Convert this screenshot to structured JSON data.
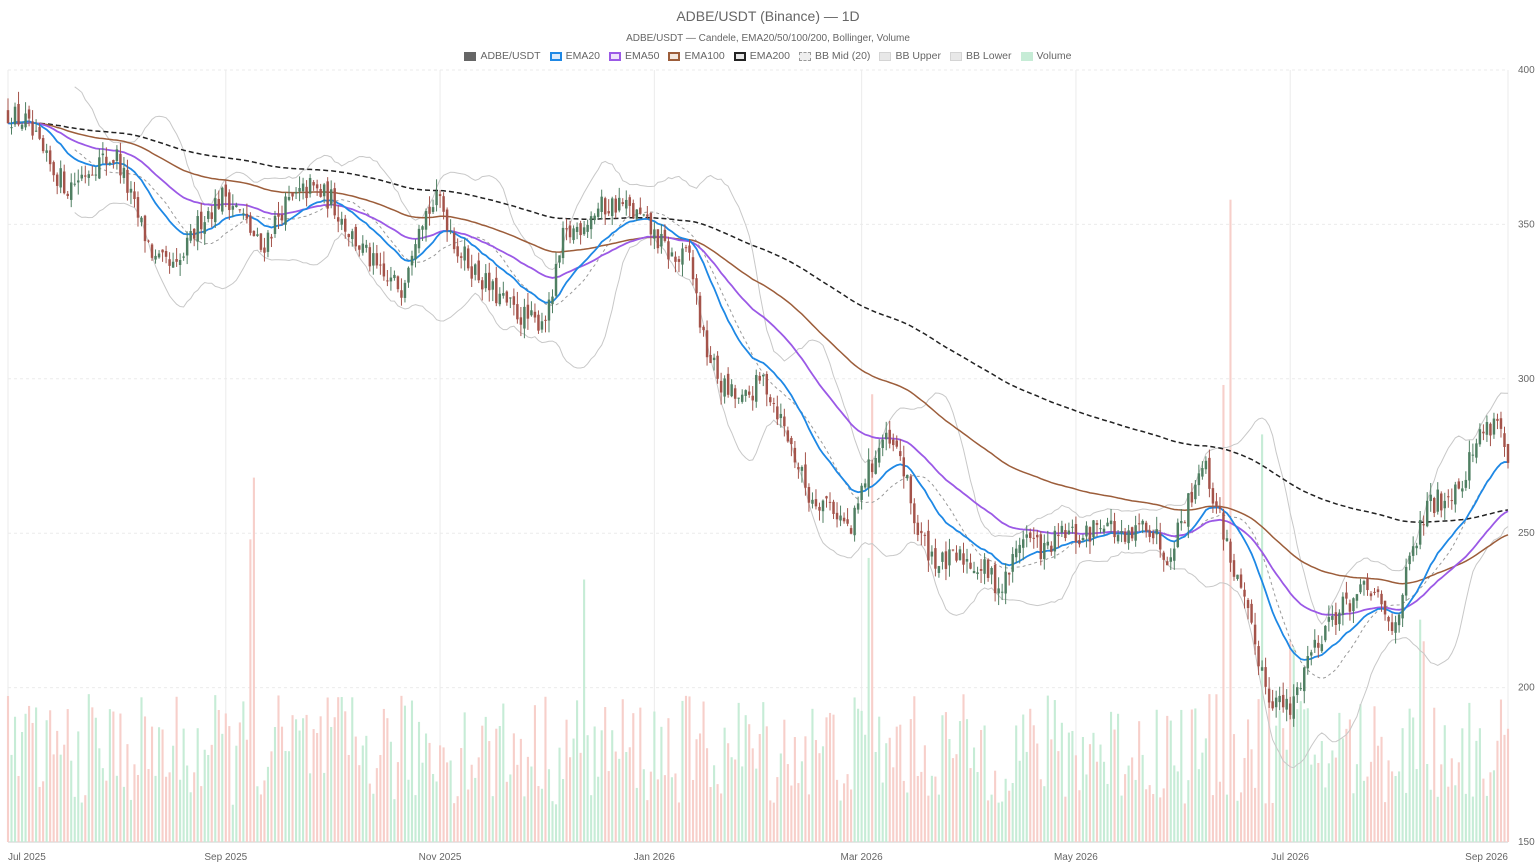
{
  "chart_data": {
    "type": "candlestick",
    "title": "ADBE/USDT (Binance) — 1D",
    "subtitle": "ADBE/USDT — Candele, EMA20/50/100/200, Bollinger, Volume",
    "legend_position": "top-center",
    "grid": true,
    "y_axis_position": "right",
    "ylim": [
      150,
      400
    ],
    "yticks": [
      150,
      200,
      250,
      300,
      350,
      400
    ],
    "xlim": [
      "2025-07-01",
      "2026-09-01"
    ],
    "xticks": [
      {
        "date": "2025-07-01",
        "label": "Jul 2025"
      },
      {
        "date": "2025-09-01",
        "label": "Sep 2025"
      },
      {
        "date": "2025-11-01",
        "label": "Nov 2025"
      },
      {
        "date": "2026-01-01",
        "label": "Jan 2026"
      },
      {
        "date": "2026-03-01",
        "label": "Mar 2026"
      },
      {
        "date": "2026-05-01",
        "label": "May 2026"
      },
      {
        "date": "2026-07-01",
        "label": "Jul 2026"
      },
      {
        "date": "2026-09-01",
        "label": "Sep 2026"
      }
    ],
    "colors": {
      "up": "#4f7f62",
      "down": "#a4534a",
      "ema20": "#1e88e5",
      "ema50": "#9b59e6",
      "ema100": "#9c5d3a",
      "ema200": "#222222",
      "bb_mid": "#9a9a9a",
      "bb_band": "#c8c8c8",
      "volume_up": "#c6ecd6",
      "volume_down": "#f7cfca",
      "grid": "#ebebeb"
    },
    "legend": [
      {
        "name": "ADBE/USDT",
        "style": "candle"
      },
      {
        "name": "EMA20",
        "style": "ema20"
      },
      {
        "name": "EMA50",
        "style": "ema50"
      },
      {
        "name": "EMA100",
        "style": "ema100"
      },
      {
        "name": "EMA200",
        "style": "ema200"
      },
      {
        "name": "BB Mid (20)",
        "style": "bbmid"
      },
      {
        "name": "BB Upper",
        "style": "bbband"
      },
      {
        "name": "BB Lower",
        "style": "bbband"
      },
      {
        "name": "Volume",
        "style": "volume"
      }
    ],
    "close_anchors": [
      [
        "2025-07-01",
        386
      ],
      [
        "2025-07-06",
        383
      ],
      [
        "2025-07-12",
        370
      ],
      [
        "2025-07-18",
        362
      ],
      [
        "2025-07-26",
        370
      ],
      [
        "2025-08-01",
        372
      ],
      [
        "2025-08-06",
        355
      ],
      [
        "2025-08-12",
        338
      ],
      [
        "2025-08-18",
        335
      ],
      [
        "2025-08-25",
        352
      ],
      [
        "2025-09-01",
        360
      ],
      [
        "2025-09-06",
        352
      ],
      [
        "2025-09-11",
        342
      ],
      [
        "2025-09-17",
        355
      ],
      [
        "2025-09-25",
        362
      ],
      [
        "2025-10-01",
        358
      ],
      [
        "2025-10-06",
        348
      ],
      [
        "2025-10-11",
        340
      ],
      [
        "2025-10-16",
        332
      ],
      [
        "2025-10-21",
        330
      ],
      [
        "2025-10-26",
        352
      ],
      [
        "2025-11-01",
        358
      ],
      [
        "2025-11-06",
        342
      ],
      [
        "2025-11-11",
        335
      ],
      [
        "2025-11-16",
        328
      ],
      [
        "2025-11-22",
        322
      ],
      [
        "2025-11-28",
        318
      ],
      [
        "2025-12-02",
        322
      ],
      [
        "2025-12-06",
        345
      ],
      [
        "2025-12-11",
        350
      ],
      [
        "2025-12-16",
        355
      ],
      [
        "2025-12-22",
        357
      ],
      [
        "2025-12-28",
        352
      ],
      [
        "2026-01-02",
        345
      ],
      [
        "2026-01-07",
        338
      ],
      [
        "2026-01-11",
        340
      ],
      [
        "2026-01-15",
        312
      ],
      [
        "2026-01-20",
        298
      ],
      [
        "2026-01-26",
        292
      ],
      [
        "2026-02-01",
        300
      ],
      [
        "2026-02-05",
        290
      ],
      [
        "2026-02-09",
        278
      ],
      [
        "2026-02-14",
        262
      ],
      [
        "2026-02-20",
        260
      ],
      [
        "2026-02-26",
        250
      ],
      [
        "2026-03-02",
        268
      ],
      [
        "2026-03-07",
        280
      ],
      [
        "2026-03-12",
        275
      ],
      [
        "2026-03-17",
        250
      ],
      [
        "2026-03-23",
        240
      ],
      [
        "2026-03-30",
        242
      ],
      [
        "2026-04-05",
        238
      ],
      [
        "2026-04-10",
        232
      ],
      [
        "2026-04-16",
        250
      ],
      [
        "2026-04-22",
        244
      ],
      [
        "2026-04-28",
        250
      ],
      [
        "2026-05-03",
        248
      ],
      [
        "2026-05-09",
        255
      ],
      [
        "2026-05-15",
        246
      ],
      [
        "2026-05-21",
        254
      ],
      [
        "2026-05-27",
        243
      ],
      [
        "2026-06-02",
        260
      ],
      [
        "2026-06-06",
        274
      ],
      [
        "2026-06-11",
        255
      ],
      [
        "2026-06-15",
        238
      ],
      [
        "2026-06-20",
        218
      ],
      [
        "2026-06-25",
        198
      ],
      [
        "2026-07-01",
        192
      ],
      [
        "2026-07-06",
        210
      ],
      [
        "2026-07-12",
        222
      ],
      [
        "2026-07-18",
        228
      ],
      [
        "2026-07-24",
        232
      ],
      [
        "2026-07-30",
        218
      ],
      [
        "2026-08-04",
        240
      ],
      [
        "2026-08-09",
        258
      ],
      [
        "2026-08-14",
        262
      ],
      [
        "2026-08-19",
        268
      ],
      [
        "2026-08-24",
        282
      ],
      [
        "2026-08-29",
        288
      ],
      [
        "2026-09-01",
        272
      ]
    ],
    "volume_spikes": [
      [
        "2025-09-09",
        268
      ],
      [
        "2025-09-08",
        248
      ],
      [
        "2025-12-12",
        235
      ],
      [
        "2026-03-03",
        242
      ],
      [
        "2026-03-04",
        295
      ],
      [
        "2026-06-12",
        298
      ],
      [
        "2026-06-14",
        358
      ],
      [
        "2026-06-23",
        282
      ],
      [
        "2026-07-01",
        215
      ],
      [
        "2026-07-02",
        213
      ],
      [
        "2026-08-07",
        222
      ],
      [
        "2026-08-08",
        215
      ]
    ]
  }
}
